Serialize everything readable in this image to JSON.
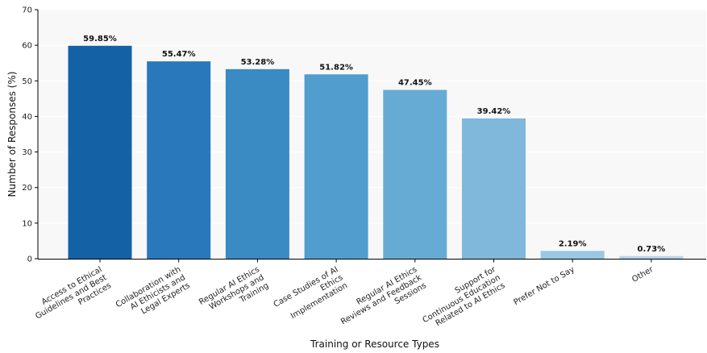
{
  "chart_data": {
    "type": "bar",
    "title": "",
    "xlabel": "Training or Resource Types",
    "ylabel": "Number of Responses (%)",
    "ylim": [
      0,
      70
    ],
    "yticks": [
      0,
      10,
      20,
      30,
      40,
      50,
      60,
      70
    ],
    "grid": true,
    "categories": [
      "Access to Ethical Guidelines and Best Practices",
      "Collaboration with AI Ethicists and Legal Experts",
      "Regular AI Ethics Workshops and Training",
      "Case Studies of AI Ethics Implementation",
      "Regular AI Ethics Reviews and Feedback Sessions",
      "Support for Continuous Education Related to AI Ethics",
      "Prefer Not to Say",
      "Other"
    ],
    "category_lines": [
      [
        "Access to Ethical",
        "Guidelines and Best",
        "Practices"
      ],
      [
        "Collaboration with",
        "AI Ethicists and",
        "Legal Experts"
      ],
      [
        "Regular AI Ethics",
        "Workshops and",
        "Training"
      ],
      [
        "Case Studies of AI",
        "Ethics",
        "Implementation"
      ],
      [
        "Regular AI Ethics",
        "Reviews and Feedback",
        "Sessions"
      ],
      [
        "Support for",
        "Continuous Education",
        "Related to AI Ethics"
      ],
      [
        "Prefer Not to Say"
      ],
      [
        "Other"
      ]
    ],
    "values": [
      59.85,
      55.47,
      53.28,
      51.82,
      47.45,
      39.42,
      2.19,
      0.73
    ],
    "data_labels": [
      "59.85%",
      "55.47%",
      "53.28%",
      "51.82%",
      "47.45%",
      "39.42%",
      "2.19%",
      "0.73%"
    ],
    "colors": [
      "#1561a6",
      "#2878bb",
      "#3a8ac3",
      "#519dce",
      "#66abd4",
      "#7fb8db",
      "#9ac8e4",
      "#b1d4ea"
    ]
  }
}
